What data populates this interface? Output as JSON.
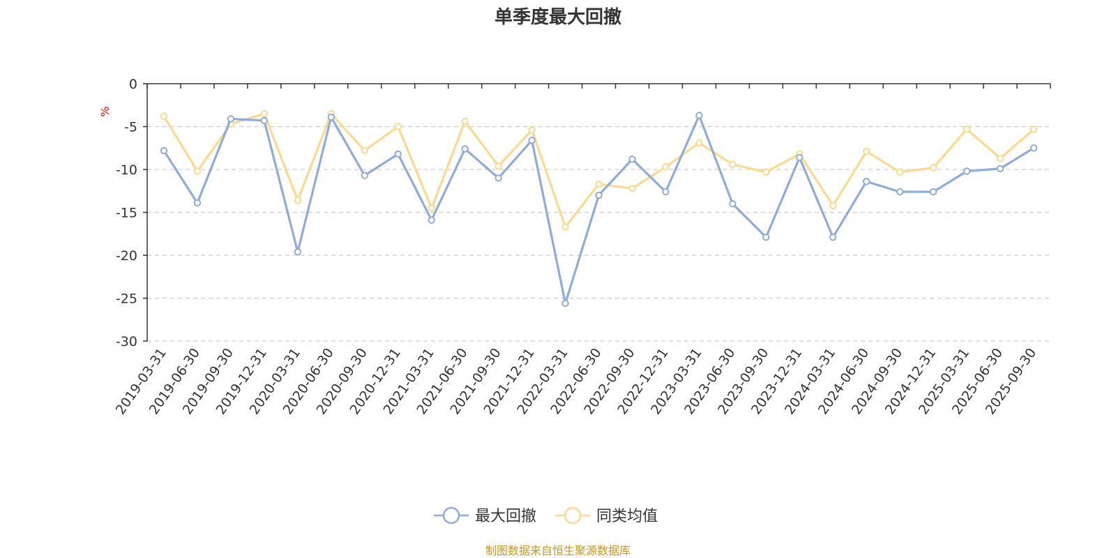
{
  "title": "单季度最大回撤",
  "source_note": "制图数据来自恒生聚源数据库",
  "colors": {
    "series1": "#8eacd9",
    "series2": "#fbd98f",
    "grid": "#cccccc",
    "axis": "#333333",
    "unit": "#ff0000",
    "source": "#c8961e"
  },
  "chart_data": {
    "type": "line",
    "title": "单季度最大回撤",
    "ylabel": "%",
    "xlabel": "",
    "ylim": [
      -30,
      0
    ],
    "yticks": [
      0,
      -5,
      -10,
      -15,
      -20,
      -25,
      -30
    ],
    "grid": true,
    "legend_position": "bottom-center",
    "categories": [
      "2019-03-31",
      "2019-06-30",
      "2019-09-30",
      "2019-12-31",
      "2020-03-31",
      "2020-06-30",
      "2020-09-30",
      "2020-12-31",
      "2021-03-31",
      "2021-06-30",
      "2021-09-30",
      "2021-12-31",
      "2022-03-31",
      "2022-06-30",
      "2022-09-30",
      "2022-12-31",
      "2023-03-31",
      "2023-06-30",
      "2023-09-30",
      "2023-12-31",
      "2024-03-31",
      "2024-06-30",
      "2024-09-30",
      "2024-12-31",
      "2025-03-31",
      "2025-06-30",
      "2025-09-30"
    ],
    "series": [
      {
        "name": "最大回撤",
        "values": [
          -7.8,
          -13.9,
          -4.1,
          -4.3,
          -19.6,
          -3.9,
          -10.7,
          -8.2,
          -15.9,
          -7.6,
          -11.0,
          -6.6,
          -25.6,
          -13.0,
          -8.8,
          -12.6,
          -3.7,
          -14.0,
          -17.9,
          -8.6,
          -17.9,
          -11.4,
          -12.6,
          -12.6,
          -10.2,
          -9.9,
          -7.5
        ]
      },
      {
        "name": "同类均值",
        "values": [
          -3.8,
          -10.2,
          -4.7,
          -3.5,
          -13.6,
          -3.5,
          -7.8,
          -5.0,
          -14.5,
          -4.4,
          -9.6,
          -5.4,
          -16.7,
          -11.7,
          -12.2,
          -9.7,
          -6.9,
          -9.4,
          -10.3,
          -8.2,
          -14.2,
          -7.9,
          -10.3,
          -9.8,
          -5.3,
          -8.7,
          -5.3
        ]
      }
    ]
  }
}
